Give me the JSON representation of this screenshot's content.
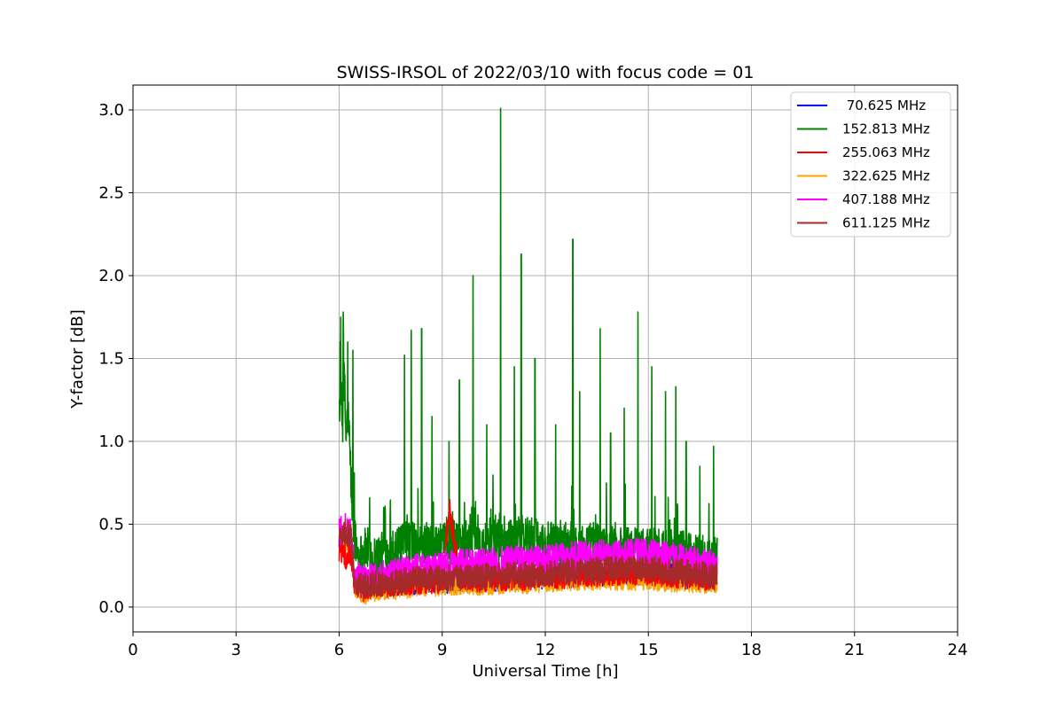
{
  "chart_data": {
    "type": "line",
    "title": "SWISS-IRSOL of 2022/03/10 with focus code = 01",
    "xlabel": "Universal Time [h]",
    "ylabel": "Y-factor [dB]",
    "xlim": [
      0,
      24
    ],
    "ylim": [
      -0.15,
      3.15
    ],
    "xticks": [
      0,
      3,
      6,
      9,
      12,
      15,
      18,
      21,
      24
    ],
    "xtick_labels": [
      "0",
      "3",
      "6",
      "9",
      "12",
      "15",
      "18",
      "21",
      "24"
    ],
    "yticks": [
      0.0,
      0.5,
      1.0,
      1.5,
      2.0,
      2.5,
      3.0
    ],
    "ytick_labels": [
      "0.0",
      "0.5",
      "1.0",
      "1.5",
      "2.0",
      "2.5",
      "3.0"
    ],
    "grid": true,
    "legend_position": "top-right",
    "series": [
      {
        "name": " 70.625 MHz",
        "color": "#0000ff",
        "x": [
          6.0,
          6.2,
          6.35,
          6.45,
          6.7,
          7.0,
          7.5,
          8.0,
          8.5,
          9.0,
          9.5,
          10.0,
          10.5,
          11.0,
          11.5,
          12.0,
          12.5,
          13.0,
          13.5,
          14.0,
          14.5,
          15.0,
          15.5,
          16.0,
          16.5,
          17.0
        ],
        "y": [
          0.4,
          0.42,
          0.38,
          0.14,
          0.1,
          0.12,
          0.13,
          0.14,
          0.15,
          0.15,
          0.16,
          0.16,
          0.16,
          0.17,
          0.17,
          0.18,
          0.18,
          0.19,
          0.19,
          0.2,
          0.2,
          0.2,
          0.19,
          0.18,
          0.17,
          0.17
        ]
      },
      {
        "name": "152.813 MHz",
        "color": "#008000",
        "x": [
          6.0,
          6.05,
          6.1,
          6.15,
          6.2,
          6.25,
          6.3,
          6.4,
          6.5,
          6.6,
          6.8,
          7.0,
          7.4,
          7.8,
          8.0,
          8.3,
          8.6,
          9.0,
          9.3,
          9.6,
          9.9,
          10.2,
          10.5,
          10.7,
          10.9,
          11.1,
          11.3,
          11.6,
          12.0,
          12.4,
          12.8,
          13.1,
          13.4,
          13.7,
          14.0,
          14.3,
          14.7,
          15.0,
          15.3,
          15.6,
          15.9,
          16.2,
          16.5,
          16.8,
          17.0
        ],
        "y": [
          1.2,
          1.3,
          1.1,
          1.4,
          1.0,
          1.2,
          1.0,
          0.5,
          0.35,
          0.3,
          0.35,
          0.3,
          0.32,
          0.35,
          0.4,
          0.35,
          0.38,
          0.36,
          0.4,
          0.38,
          0.45,
          0.38,
          0.42,
          0.4,
          0.4,
          0.38,
          0.42,
          0.4,
          0.38,
          0.36,
          0.4,
          0.36,
          0.38,
          0.36,
          0.35,
          0.36,
          0.34,
          0.35,
          0.33,
          0.34,
          0.32,
          0.32,
          0.3,
          0.3,
          0.3
        ],
        "peaks": [
          [
            6.05,
            1.75
          ],
          [
            6.12,
            1.78
          ],
          [
            6.25,
            1.6
          ],
          [
            6.4,
            1.55
          ],
          [
            7.3,
            0.6
          ],
          [
            7.9,
            1.52
          ],
          [
            8.1,
            1.67
          ],
          [
            8.4,
            1.68
          ],
          [
            8.7,
            1.15
          ],
          [
            9.2,
            1.0
          ],
          [
            9.5,
            1.37
          ],
          [
            9.9,
            2.0
          ],
          [
            10.3,
            1.1
          ],
          [
            10.7,
            3.01
          ],
          [
            11.1,
            1.45
          ],
          [
            11.3,
            2.13
          ],
          [
            11.7,
            1.5
          ],
          [
            12.3,
            1.1
          ],
          [
            12.8,
            2.22
          ],
          [
            13.0,
            1.3
          ],
          [
            13.6,
            1.68
          ],
          [
            13.9,
            1.05
          ],
          [
            14.3,
            1.2
          ],
          [
            14.7,
            1.78
          ],
          [
            15.1,
            1.45
          ],
          [
            15.5,
            1.3
          ],
          [
            15.8,
            1.33
          ],
          [
            16.1,
            1.0
          ],
          [
            16.5,
            0.85
          ],
          [
            16.9,
            0.97
          ]
        ]
      },
      {
        "name": "255.063 MHz",
        "color": "#ff0000",
        "x": [
          6.0,
          6.2,
          6.35,
          6.45,
          6.7,
          7.0,
          7.5,
          8.0,
          8.5,
          9.0,
          9.2,
          9.5,
          10.0,
          10.5,
          11.0,
          11.5,
          12.0,
          12.5,
          13.0,
          13.5,
          14.0,
          14.5,
          15.0,
          15.5,
          16.0,
          16.5,
          17.0
        ],
        "y": [
          0.35,
          0.3,
          0.3,
          0.15,
          0.11,
          0.13,
          0.14,
          0.15,
          0.16,
          0.16,
          0.6,
          0.17,
          0.17,
          0.17,
          0.18,
          0.18,
          0.19,
          0.19,
          0.2,
          0.2,
          0.21,
          0.21,
          0.21,
          0.2,
          0.19,
          0.18,
          0.18
        ]
      },
      {
        "name": "322.625 MHz",
        "color": "#ffa500",
        "x": [
          6.0,
          6.2,
          6.35,
          6.45,
          6.7,
          7.0,
          7.5,
          8.0,
          8.5,
          9.0,
          9.5,
          10.0,
          10.5,
          11.0,
          11.5,
          12.0,
          12.5,
          13.0,
          13.5,
          14.0,
          14.5,
          15.0,
          15.5,
          16.0,
          16.5,
          17.0
        ],
        "y": [
          0.38,
          0.4,
          0.36,
          0.12,
          0.08,
          0.1,
          0.11,
          0.12,
          0.13,
          0.13,
          0.14,
          0.14,
          0.14,
          0.15,
          0.15,
          0.16,
          0.16,
          0.17,
          0.17,
          0.17,
          0.17,
          0.17,
          0.16,
          0.16,
          0.15,
          0.15
        ]
      },
      {
        "name": "407.188 MHz",
        "color": "#ff00ff",
        "x": [
          6.0,
          6.2,
          6.35,
          6.45,
          6.7,
          7.0,
          7.5,
          8.0,
          8.5,
          9.0,
          9.5,
          10.0,
          10.5,
          11.0,
          11.5,
          12.0,
          12.5,
          13.0,
          13.5,
          14.0,
          14.5,
          15.0,
          15.5,
          16.0,
          16.5,
          17.0
        ],
        "y": [
          0.45,
          0.48,
          0.45,
          0.2,
          0.16,
          0.18,
          0.2,
          0.22,
          0.24,
          0.25,
          0.26,
          0.27,
          0.27,
          0.28,
          0.28,
          0.29,
          0.3,
          0.31,
          0.32,
          0.32,
          0.33,
          0.32,
          0.31,
          0.29,
          0.27,
          0.25
        ]
      },
      {
        "name": "611.125 MHz",
        "color": "#a52a2a",
        "x": [
          6.0,
          6.2,
          6.35,
          6.45,
          6.7,
          7.0,
          7.5,
          8.0,
          8.5,
          9.0,
          9.5,
          10.0,
          10.5,
          11.0,
          11.5,
          12.0,
          12.5,
          13.0,
          13.5,
          14.0,
          14.5,
          15.0,
          15.5,
          16.0,
          16.5,
          17.0
        ],
        "y": [
          0.42,
          0.45,
          0.42,
          0.15,
          0.13,
          0.14,
          0.15,
          0.16,
          0.17,
          0.17,
          0.18,
          0.18,
          0.19,
          0.19,
          0.2,
          0.2,
          0.21,
          0.22,
          0.22,
          0.23,
          0.23,
          0.23,
          0.22,
          0.21,
          0.2,
          0.19
        ]
      }
    ]
  }
}
